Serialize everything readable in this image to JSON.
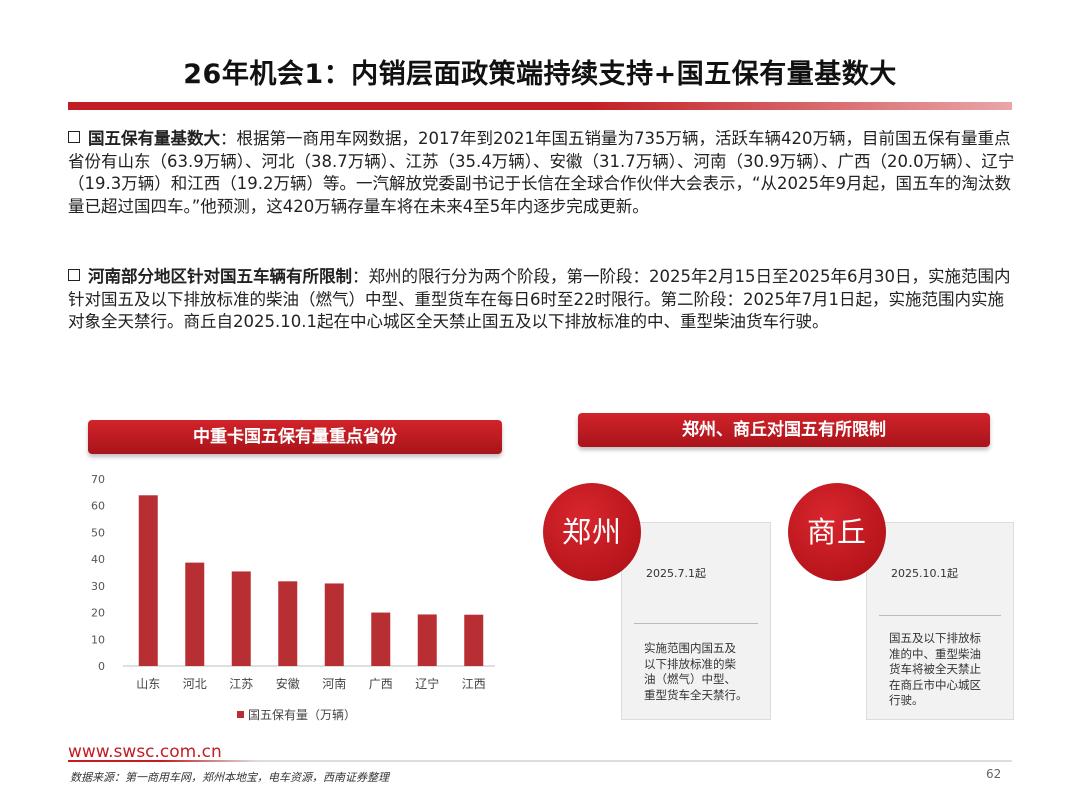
{
  "title": "26年机会1：内销层面政策端持续支持+国五保有量基数大",
  "bullets": [
    {
      "lead": "国五保有量基数大",
      "text": "：根据第一商用车网数据，2017年到2021年国五销量为735万辆，活跃车辆420万辆，目前国五保有量重点省份有山东（63.9万辆）、河北（38.7万辆）、江苏（35.4万辆）、安徽（31.7万辆）、河南（30.9万辆）、广西（20.0万辆）、辽宁（19.3万辆）和江西（19.2万辆）等。一汽解放党委副书记于长信在全球合作伙伴大会表示，“从2025年9月起，国五车的淘汰数量已超过国四车。”他预测，这420万辆存量车将在未来4至5年内逐步完成更新。"
    },
    {
      "lead": "河南部分地区针对国五车辆有所限制",
      "text": "：郑州的限行分为两个阶段，第一阶段：2025年2月15日至2025年6月30日，实施范围内针对国五及以下排放标准的柴油（燃气）中型、重型货车在每日6时至22时限行。第二阶段：2025年7月1日起，实施范围内实施对象全天禁行。商丘自2025.10.1起在中心城区全天禁止国五及以下排放标准的中、重型柴油货车行驶。"
    }
  ],
  "chart_banner": "中重卡国五保有量重点省份",
  "chart_data": {
    "type": "bar",
    "categories": [
      "山东",
      "河北",
      "江苏",
      "安徽",
      "河南",
      "广西",
      "辽宁",
      "江西"
    ],
    "series": [
      {
        "name": "国五保有量（万辆）",
        "values": [
          63.9,
          38.7,
          35.4,
          31.7,
          30.9,
          20.0,
          19.3,
          19.2
        ]
      }
    ],
    "yticks": [
      0,
      10,
      20,
      30,
      40,
      50,
      60,
      70
    ],
    "ylim": [
      0,
      70
    ],
    "bar_color": "#b82f33",
    "legend_position": "bottom"
  },
  "right_banner": "郑州、商丘对国五有所限制",
  "cities": [
    {
      "name": "郑州",
      "date": "2025.7.1起",
      "desc": [
        "实施范围内国五及",
        "以下排放标准的柴",
        "油（燃气）中型、",
        "重型货车全天禁行。"
      ]
    },
    {
      "name": "商丘",
      "date": "2025.10.1起",
      "desc": [
        "国五及以下排放标",
        "准的中、重型柴油",
        "货车将被全天禁止",
        "在商丘市中心城区",
        "行驶。"
      ]
    }
  ],
  "footer": {
    "url": "www.swsc.com.cn",
    "source": "数据来源：第一商用车网，郑州本地宝，电车资源，西南证券整理",
    "page": "62"
  },
  "colors": {
    "accent": "#c21d23"
  }
}
